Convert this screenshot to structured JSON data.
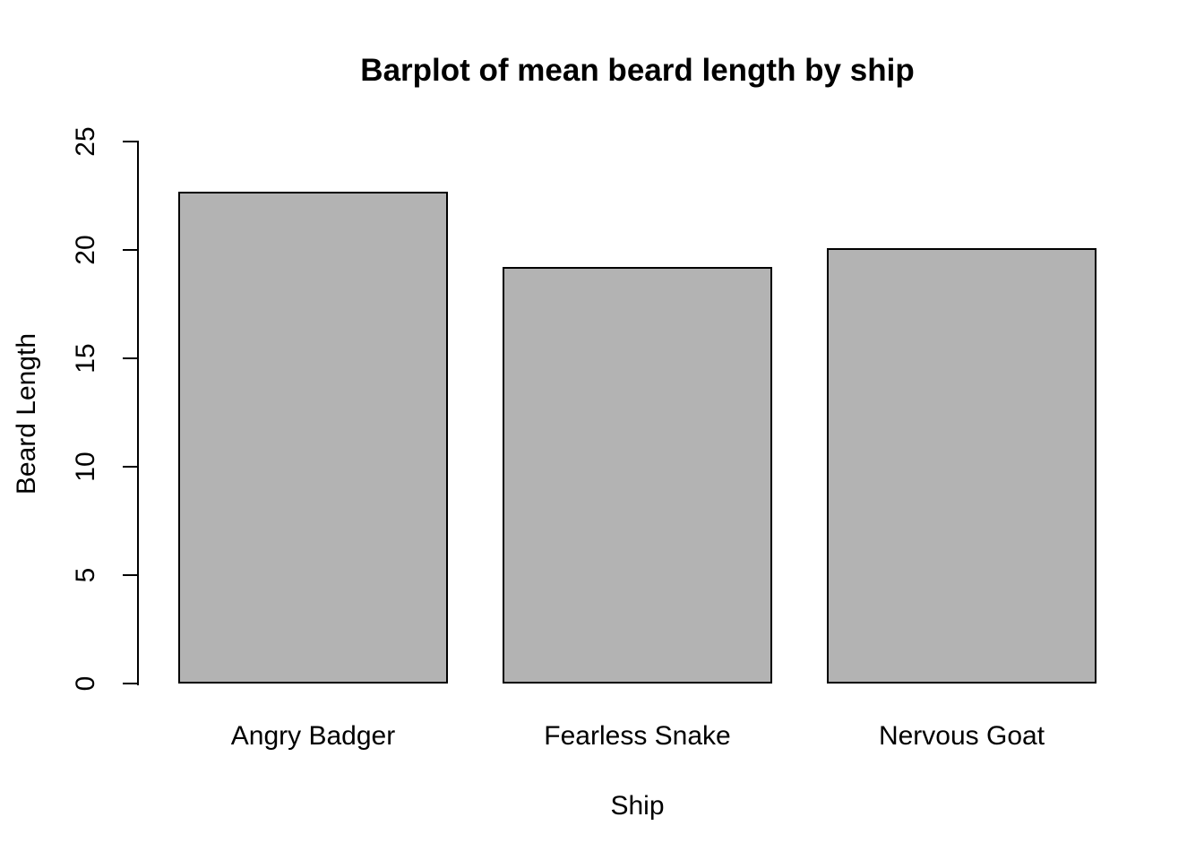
{
  "chart_data": {
    "type": "bar",
    "title": "Barplot of mean beard length by ship",
    "xlabel": "Ship",
    "ylabel": "Beard Length",
    "categories": [
      "Angry Badger",
      "Fearless Snake",
      "Nervous Goat"
    ],
    "values": [
      22.7,
      19.2,
      20.1
    ],
    "yticks": [
      0,
      5,
      10,
      15,
      20,
      25
    ],
    "ylim": [
      0,
      25
    ],
    "grid": false,
    "legend": "none",
    "colors": {
      "bar_fill": "#b3b3b3",
      "bar_border": "#000000",
      "axis": "#000000",
      "text": "#000000",
      "background": "#ffffff"
    }
  }
}
